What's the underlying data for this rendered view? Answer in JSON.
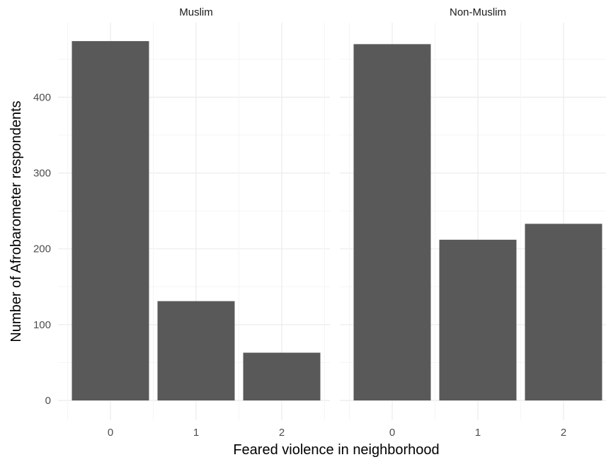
{
  "chart_data": {
    "type": "bar",
    "xlabel": "Feared violence in neighborhood",
    "ylabel": "Number of Afrobarometer respondents",
    "ylim": [
      0,
      480
    ],
    "yticks": [
      "0",
      "100",
      "200",
      "300",
      "400"
    ],
    "grid": true,
    "categories": [
      "0",
      "1",
      "2"
    ],
    "colors": {
      "bar": "#595959",
      "grid_major": "#ebebeb",
      "grid_minor": "#f5f5f5"
    },
    "facets": [
      {
        "title": "Muslim",
        "values": [
          474,
          131,
          63
        ]
      },
      {
        "title": "Non-Muslim",
        "values": [
          470,
          212,
          233
        ]
      }
    ]
  }
}
